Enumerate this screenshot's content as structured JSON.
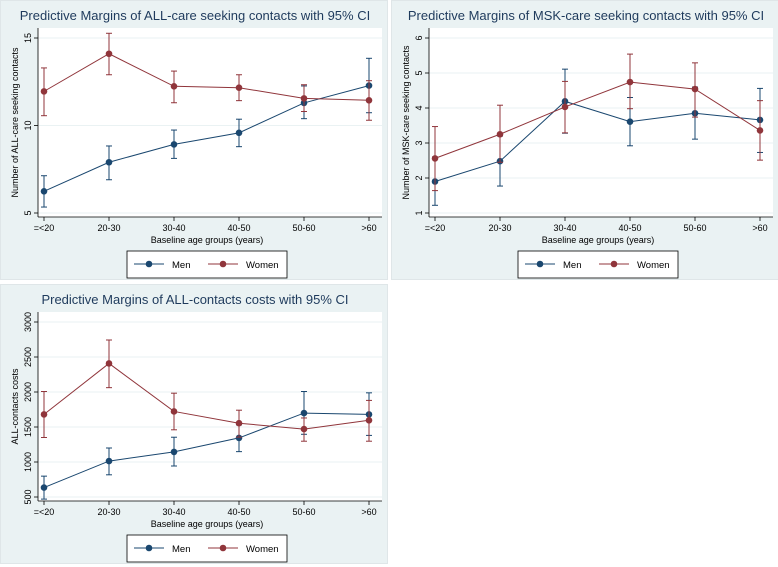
{
  "chart_data": [
    {
      "type": "line",
      "title": "Predictive Margins of ALL-care seeking contacts with 95% CI",
      "xlabel": "Baseline age groups (years)",
      "ylabel": "Number of ALL-care seeking contacts",
      "categories": [
        "=<20",
        "20-30",
        "30-40",
        "40-50",
        "50-60",
        ">60"
      ],
      "yticks": [
        5,
        10,
        15
      ],
      "ylim": [
        5,
        15
      ],
      "grid": true,
      "legend": "bottom",
      "series": [
        {
          "name": "Men",
          "color": "#1a476f",
          "values": [
            6.24,
            7.9,
            8.92,
            9.58,
            11.29,
            12.28
          ],
          "ci_low": [
            5.34,
            6.9,
            8.12,
            8.79,
            10.39,
            10.73
          ],
          "ci_high": [
            7.13,
            8.83,
            9.74,
            10.36,
            12.26,
            13.84
          ]
        },
        {
          "name": "Women",
          "color": "#90353b",
          "values": [
            11.95,
            14.1,
            12.24,
            12.16,
            11.55,
            11.44
          ],
          "ci_low": [
            10.56,
            12.9,
            11.3,
            11.42,
            10.8,
            10.3
          ],
          "ci_high": [
            13.29,
            15.27,
            13.11,
            12.9,
            12.33,
            12.56
          ]
        }
      ]
    },
    {
      "type": "line",
      "title": "Predictive Margins of MSK-care seeking contacts with 95% CI",
      "xlabel": "Baseline age groups (years)",
      "ylabel": "Number of MSK-care seeking contacts",
      "categories": [
        "=<20",
        "20-30",
        "30-40",
        "40-50",
        "50-60",
        ">60"
      ],
      "yticks": [
        1,
        2,
        3,
        4,
        5,
        6
      ],
      "ylim": [
        1,
        6
      ],
      "grid": true,
      "legend": "bottom",
      "series": [
        {
          "name": "Men",
          "color": "#1a476f",
          "values": [
            1.9,
            2.48,
            4.19,
            3.61,
            3.85,
            3.66
          ],
          "ci_low": [
            1.22,
            1.77,
            3.28,
            2.92,
            3.11,
            2.73
          ],
          "ci_high": [
            2.6,
            3.2,
            5.11,
            4.3,
            4.6,
            4.56
          ]
        },
        {
          "name": "Women",
          "color": "#90353b",
          "values": [
            2.56,
            3.25,
            4.03,
            4.74,
            4.54,
            3.36
          ],
          "ci_low": [
            1.64,
            2.45,
            3.29,
            3.98,
            3.74,
            2.51
          ],
          "ci_high": [
            3.47,
            4.08,
            4.76,
            5.54,
            5.29,
            4.21
          ]
        }
      ]
    },
    {
      "type": "line",
      "title": "Predictive Margins of ALL-contacts costs with 95% CI",
      "xlabel": "Baseline age groups (years)",
      "ylabel": "ALL-contacts costs",
      "categories": [
        "=<20",
        "20-30",
        "30-40",
        "40-50",
        "50-60",
        ">60"
      ],
      "yticks": [
        500,
        1000,
        1500,
        2000,
        2500,
        3000
      ],
      "ylim": [
        500,
        3000
      ],
      "grid": true,
      "legend": "bottom",
      "series": [
        {
          "name": "Men",
          "color": "#1a476f",
          "values": [
            635,
            1013,
            1144,
            1344,
            1699,
            1680
          ],
          "ci_low": [
            470,
            817,
            943,
            1148,
            1396,
            1380
          ],
          "ci_high": [
            798,
            1200,
            1354,
            1530,
            2007,
            1988
          ]
        },
        {
          "name": "Women",
          "color": "#90353b",
          "values": [
            1680,
            2408,
            1722,
            1554,
            1470,
            1596
          ],
          "ci_low": [
            1350,
            2062,
            1460,
            1355,
            1297,
            1297
          ],
          "ci_high": [
            2007,
            2743,
            1983,
            1740,
            1629,
            1880
          ]
        }
      ]
    }
  ]
}
